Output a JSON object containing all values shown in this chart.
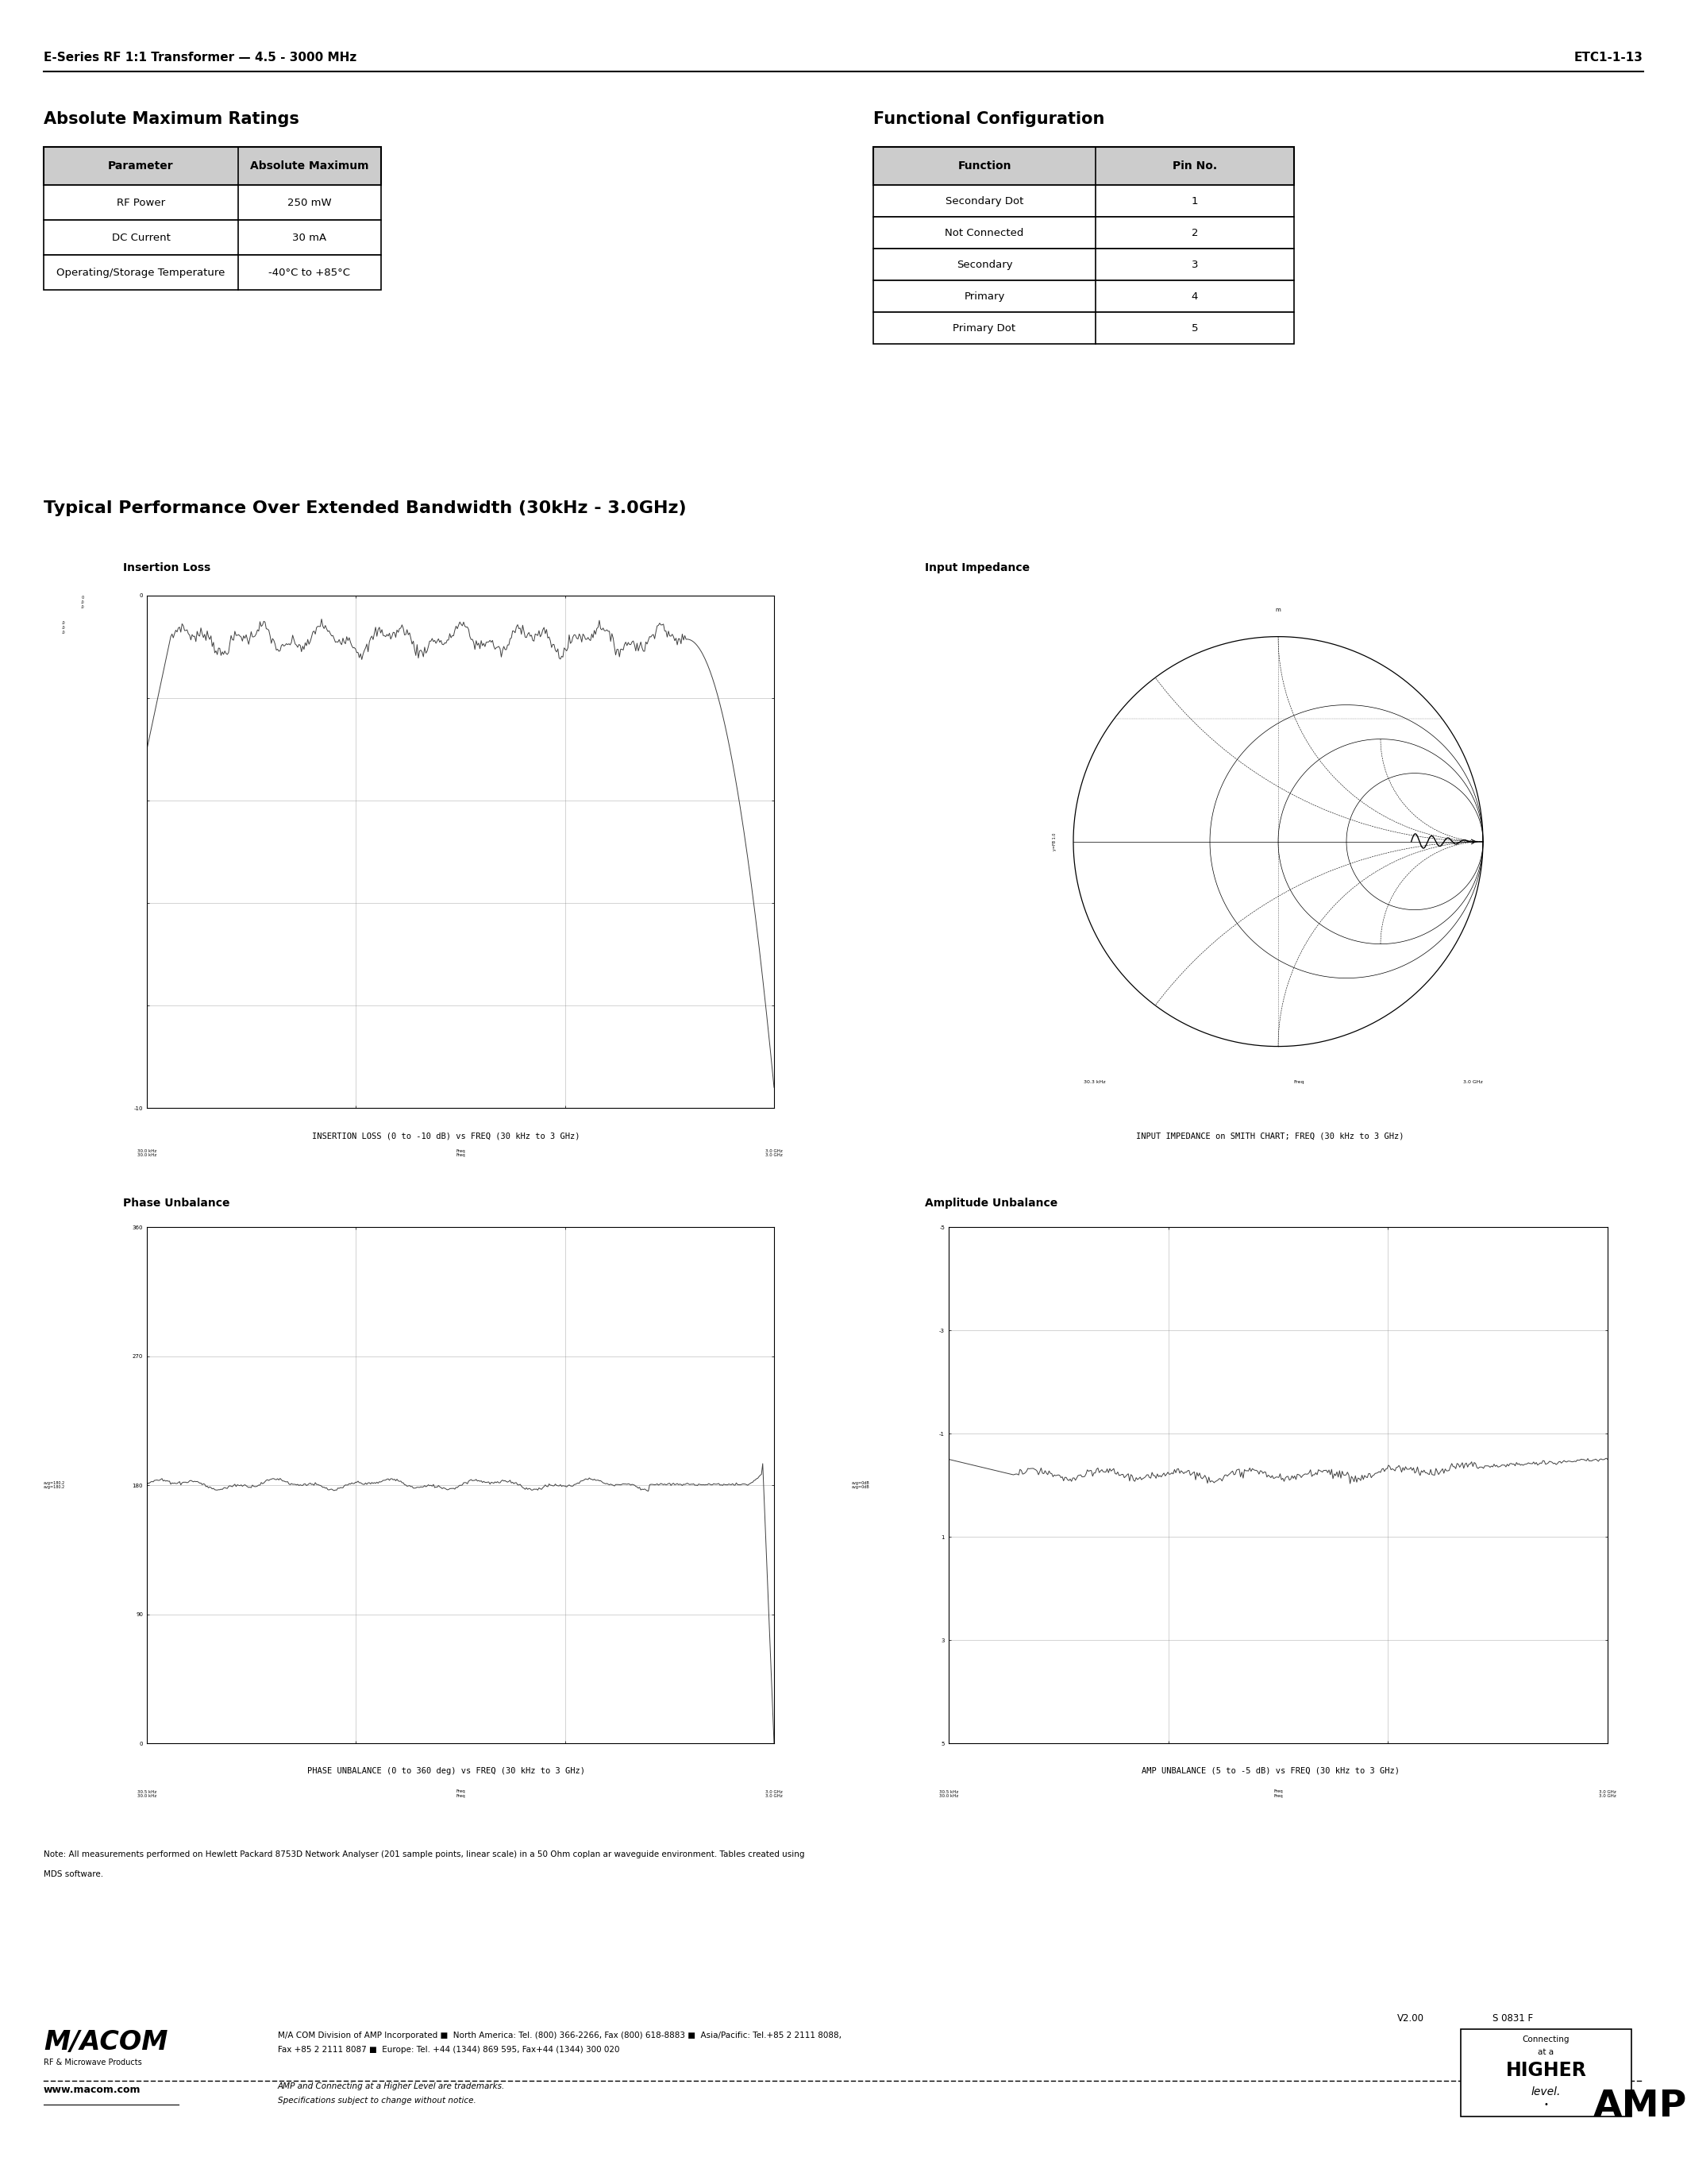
{
  "page_title_left": "E-Series RF 1:1 Transformer — 4.5 - 3000 MHz",
  "page_title_right": "ETC1-1-13",
  "section1_title": "Absolute Maximum Ratings",
  "abs_max_headers": [
    "Parameter",
    "Absolute Maximum"
  ],
  "abs_max_rows": [
    [
      "RF Power",
      "250 mW"
    ],
    [
      "DC Current",
      "30 mA"
    ],
    [
      "Operating/Storage Temperature",
      "-40°C to +85°C"
    ]
  ],
  "section2_title": "Functional Configuration",
  "func_config_headers": [
    "Function",
    "Pin No."
  ],
  "func_config_rows": [
    [
      "Secondary Dot",
      "1"
    ],
    [
      "Not Connected",
      "2"
    ],
    [
      "Secondary",
      "3"
    ],
    [
      "Primary",
      "4"
    ],
    [
      "Primary Dot",
      "5"
    ]
  ],
  "section3_title": "Typical Performance Over Extended Bandwidth (30kHz - 3.0GHz)",
  "chart1_title": "Insertion Loss",
  "chart1_caption": "INSERTION LOSS (0 to -10 dB) vs FREQ (30 kHz to 3 GHz)",
  "chart2_title": "Input Impedance",
  "chart2_caption": "INPUT IMPEDANCE on SMITH CHART; FREQ (30 kHz to 3 GHz)",
  "chart3_title": "Phase Unbalance",
  "chart3_caption": "PHASE UNBALANCE (0 to 360 deg) vs FREQ (30 kHz to 3 GHz)",
  "chart4_title": "Amplitude Unbalance",
  "chart4_caption": "AMP UNBALANCE (5 to -5 dB) vs FREQ (30 kHz to 3 GHz)",
  "note_line1": "Note: All measurements performed on Hewlett Packard 8753D Network Analyser (201 sample points, linear scale) in a 50 Ohm coplan ar waveguide environment. Tables created using",
  "note_line2": "MDS software.",
  "footer_url": "www.macom.com",
  "footer_trademark_line1": "AMP and Connecting at a Higher Level are trademarks.",
  "footer_trademark_line2": "Specifications subject to change without notice.",
  "footer_company_line1": "M/A COM Division of AMP Incorporated ■  North America: Tel. (800) 366-2266, Fax (800) 618-8883 ■  Asia/Pacific: Tel.+85 2 2111 8088,",
  "footer_company_line2": "Fax +85 2 2111 8087 ■  Europe: Tel. +44 (1344) 869 595, Fax+44 (1344) 300 020",
  "version": "V2.00",
  "stock": "S 0831 F",
  "bg_color": "#ffffff",
  "header_bg": "#cccccc",
  "macom_logo_line1": "M/ACOM",
  "macom_logo_line2": "RF & Microwave Products"
}
